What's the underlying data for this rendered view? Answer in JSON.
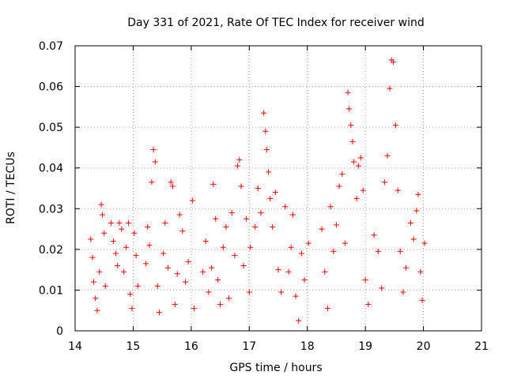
{
  "chart_data": {
    "type": "scatter",
    "title": "Day 331 of 2021, Rate Of TEC Index for receiver wind",
    "xlabel": "GPS time / hours",
    "ylabel": "ROTI / TECUs",
    "xlim": [
      14,
      21
    ],
    "ylim": [
      0,
      0.07
    ],
    "x_ticks": [
      "14",
      "15",
      "16",
      "17",
      "18",
      "19",
      "20",
      "21"
    ],
    "y_ticks": [
      "0",
      "0.01",
      "0.02",
      "0.03",
      "0.04",
      "0.05",
      "0.06",
      "0.07"
    ],
    "grid": true,
    "legend": "none",
    "marker": "+",
    "series_color": "#ff0000",
    "series": [
      {
        "name": "ROTI",
        "points": [
          [
            14.27,
            0.0225
          ],
          [
            14.3,
            0.018
          ],
          [
            14.32,
            0.012
          ],
          [
            14.35,
            0.008
          ],
          [
            14.38,
            0.005
          ],
          [
            14.42,
            0.0145
          ],
          [
            14.45,
            0.031
          ],
          [
            14.47,
            0.0285
          ],
          [
            14.5,
            0.024
          ],
          [
            14.52,
            0.011
          ],
          [
            14.62,
            0.0265
          ],
          [
            14.66,
            0.022
          ],
          [
            14.7,
            0.019
          ],
          [
            14.73,
            0.016
          ],
          [
            14.76,
            0.0265
          ],
          [
            14.8,
            0.025
          ],
          [
            14.84,
            0.0145
          ],
          [
            14.88,
            0.0205
          ],
          [
            14.92,
            0.0265
          ],
          [
            14.95,
            0.009
          ],
          [
            14.98,
            0.0055
          ],
          [
            15.02,
            0.024
          ],
          [
            15.05,
            0.0185
          ],
          [
            15.08,
            0.011
          ],
          [
            15.22,
            0.0165
          ],
          [
            15.25,
            0.0255
          ],
          [
            15.28,
            0.021
          ],
          [
            15.32,
            0.0365
          ],
          [
            15.35,
            0.0445
          ],
          [
            15.38,
            0.0415
          ],
          [
            15.42,
            0.011
          ],
          [
            15.45,
            0.0045
          ],
          [
            15.52,
            0.019
          ],
          [
            15.55,
            0.0265
          ],
          [
            15.6,
            0.0155
          ],
          [
            15.65,
            0.0365
          ],
          [
            15.68,
            0.0355
          ],
          [
            15.72,
            0.0065
          ],
          [
            15.76,
            0.014
          ],
          [
            15.8,
            0.0285
          ],
          [
            15.85,
            0.0245
          ],
          [
            15.9,
            0.012
          ],
          [
            15.95,
            0.017
          ],
          [
            16.02,
            0.032
          ],
          [
            16.05,
            0.0055
          ],
          [
            16.2,
            0.0145
          ],
          [
            16.25,
            0.022
          ],
          [
            16.3,
            0.0095
          ],
          [
            16.35,
            0.0155
          ],
          [
            16.38,
            0.036
          ],
          [
            16.42,
            0.0275
          ],
          [
            16.46,
            0.0125
          ],
          [
            16.5,
            0.0065
          ],
          [
            16.55,
            0.0205
          ],
          [
            16.6,
            0.0255
          ],
          [
            16.65,
            0.008
          ],
          [
            16.7,
            0.029
          ],
          [
            16.75,
            0.0185
          ],
          [
            16.8,
            0.0405
          ],
          [
            16.83,
            0.042
          ],
          [
            16.86,
            0.0355
          ],
          [
            16.9,
            0.016
          ],
          [
            16.95,
            0.0275
          ],
          [
            17.0,
            0.0095
          ],
          [
            17.02,
            0.0205
          ],
          [
            17.1,
            0.0255
          ],
          [
            17.15,
            0.035
          ],
          [
            17.2,
            0.029
          ],
          [
            17.25,
            0.0535
          ],
          [
            17.28,
            0.049
          ],
          [
            17.3,
            0.0445
          ],
          [
            17.33,
            0.039
          ],
          [
            17.36,
            0.0325
          ],
          [
            17.4,
            0.0255
          ],
          [
            17.45,
            0.034
          ],
          [
            17.5,
            0.015
          ],
          [
            17.55,
            0.0095
          ],
          [
            17.62,
            0.0305
          ],
          [
            17.68,
            0.0145
          ],
          [
            17.72,
            0.0205
          ],
          [
            17.75,
            0.0285
          ],
          [
            17.8,
            0.0085
          ],
          [
            17.85,
            0.0025
          ],
          [
            17.9,
            0.019
          ],
          [
            17.95,
            0.0125
          ],
          [
            18.02,
            0.0215
          ],
          [
            18.25,
            0.025
          ],
          [
            18.3,
            0.0145
          ],
          [
            18.35,
            0.0055
          ],
          [
            18.4,
            0.0305
          ],
          [
            18.45,
            0.0195
          ],
          [
            18.5,
            0.026
          ],
          [
            18.55,
            0.0355
          ],
          [
            18.6,
            0.0385
          ],
          [
            18.65,
            0.0215
          ],
          [
            18.7,
            0.0585
          ],
          [
            18.72,
            0.0545
          ],
          [
            18.75,
            0.0505
          ],
          [
            18.78,
            0.0465
          ],
          [
            18.8,
            0.0415
          ],
          [
            18.85,
            0.0325
          ],
          [
            18.88,
            0.0405
          ],
          [
            18.92,
            0.0425
          ],
          [
            18.96,
            0.0345
          ],
          [
            19.0,
            0.0125
          ],
          [
            19.05,
            0.0065
          ],
          [
            19.15,
            0.0235
          ],
          [
            19.22,
            0.0195
          ],
          [
            19.28,
            0.0105
          ],
          [
            19.33,
            0.0365
          ],
          [
            19.38,
            0.043
          ],
          [
            19.42,
            0.0595
          ],
          [
            19.45,
            0.0665
          ],
          [
            19.48,
            0.066
          ],
          [
            19.52,
            0.0505
          ],
          [
            19.56,
            0.0345
          ],
          [
            19.6,
            0.0195
          ],
          [
            19.65,
            0.0095
          ],
          [
            19.7,
            0.0155
          ],
          [
            19.78,
            0.0265
          ],
          [
            19.83,
            0.0225
          ],
          [
            19.88,
            0.0295
          ],
          [
            19.91,
            0.0335
          ],
          [
            19.95,
            0.0145
          ],
          [
            19.98,
            0.0075
          ],
          [
            20.02,
            0.0215
          ]
        ]
      }
    ]
  }
}
